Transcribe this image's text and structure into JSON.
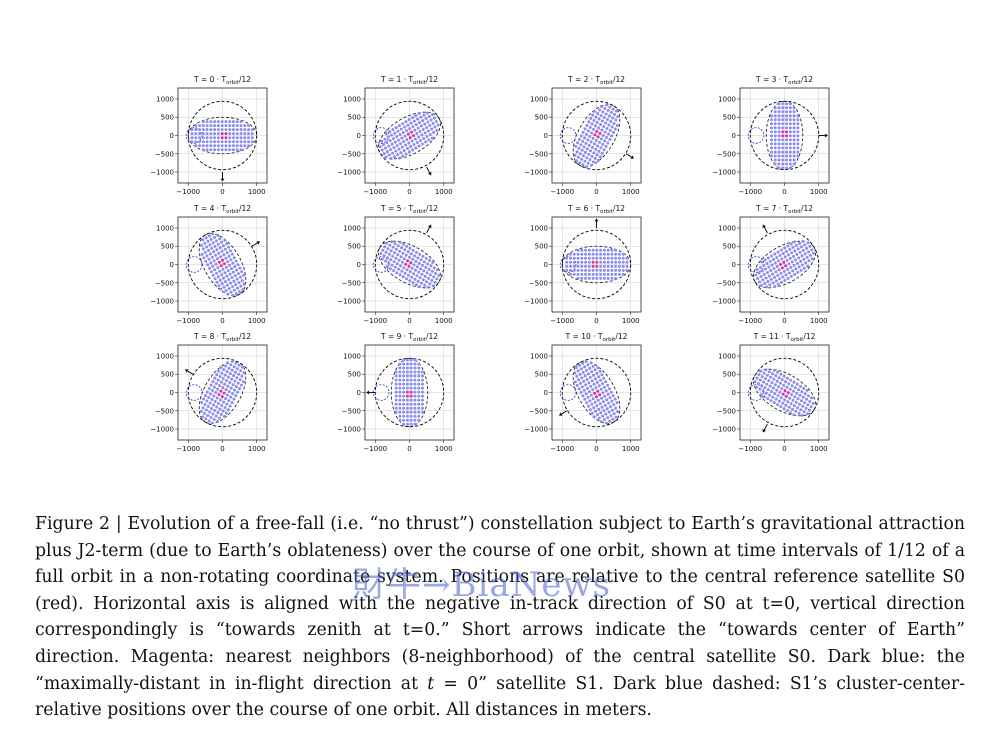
{
  "figure": {
    "panels": [
      {
        "n": "0",
        "label_prefix": "T = 0 · T",
        "label_sub": "orbit",
        "label_suffix": "/12",
        "angle": 0
      },
      {
        "n": "1",
        "label_prefix": "T = 1 · T",
        "label_sub": "orbit",
        "label_suffix": "/12",
        "angle": 30
      },
      {
        "n": "2",
        "label_prefix": "T = 2 · T",
        "label_sub": "orbit",
        "label_suffix": "/12",
        "angle": 60
      },
      {
        "n": "3",
        "label_prefix": "T = 3 · T",
        "label_sub": "orbit",
        "label_suffix": "/12",
        "angle": 90
      },
      {
        "n": "4",
        "label_prefix": "T = 4 · T",
        "label_sub": "orbit",
        "label_suffix": "/12",
        "angle": 120
      },
      {
        "n": "5",
        "label_prefix": "T = 5 · T",
        "label_sub": "orbit",
        "label_suffix": "/12",
        "angle": 150
      },
      {
        "n": "6",
        "label_prefix": "T = 6 · T",
        "label_sub": "orbit",
        "label_suffix": "/12",
        "angle": 180
      },
      {
        "n": "7",
        "label_prefix": "T = 7 · T",
        "label_sub": "orbit",
        "label_suffix": "/12",
        "angle": 210
      },
      {
        "n": "8",
        "label_prefix": "T = 8 · T",
        "label_sub": "orbit",
        "label_suffix": "/12",
        "angle": 240
      },
      {
        "n": "9",
        "label_prefix": "T = 9 · T",
        "label_sub": "orbit",
        "label_suffix": "/12",
        "angle": 270
      },
      {
        "n": "10",
        "label_prefix": "T = 10 · T",
        "label_sub": "orbit",
        "label_suffix": "/12",
        "angle": 300
      },
      {
        "n": "11",
        "label_prefix": "T = 11 · T",
        "label_sub": "orbit",
        "label_suffix": "/12",
        "angle": 330
      }
    ],
    "y_ticks": [
      "1000",
      "500",
      "0",
      "−500",
      "−1000"
    ],
    "x_ticks": [
      "−1000",
      "0",
      "1000"
    ],
    "axis_range": [
      -1300,
      1300
    ],
    "colors": {
      "swarm": "#8c8cf0",
      "neighbors": "#e0309a",
      "center": "#d42020",
      "s1_path": "#3030c8",
      "earth_ring": "#000000",
      "grid": "#cccccc"
    }
  },
  "caption": {
    "lead": "Figure 2 | Evolution of a free-fall (i.e. “no thrust”) constellation subject to Earth’s gravitational attraction plus J2-term (due to Earth’s oblateness) over the course of one orbit, shown at time intervals of 1/12 of a full orbit in a non-rotating coordinate system. Positions are relative to the central reference satellite S0 (red). Horizontal axis is aligned with the negative in-track direction of S0 at t=0, vertical direction correspondingly is “towards zenith at t=0.” Short arrows indicate the “towards center of Earth” direction. Magenta: nearest neighbors (8-neighborhood) of the central satellite S0. Dark blue: the “maximally-distant in in-flight direction at ",
    "t_var": "t",
    "mid": " = 0” satellite S1. Dark blue dashed: S1’s cluster-center-relative positions over the course of one orbit. All distances in meters."
  },
  "watermark": "財牛→BiaNews"
}
